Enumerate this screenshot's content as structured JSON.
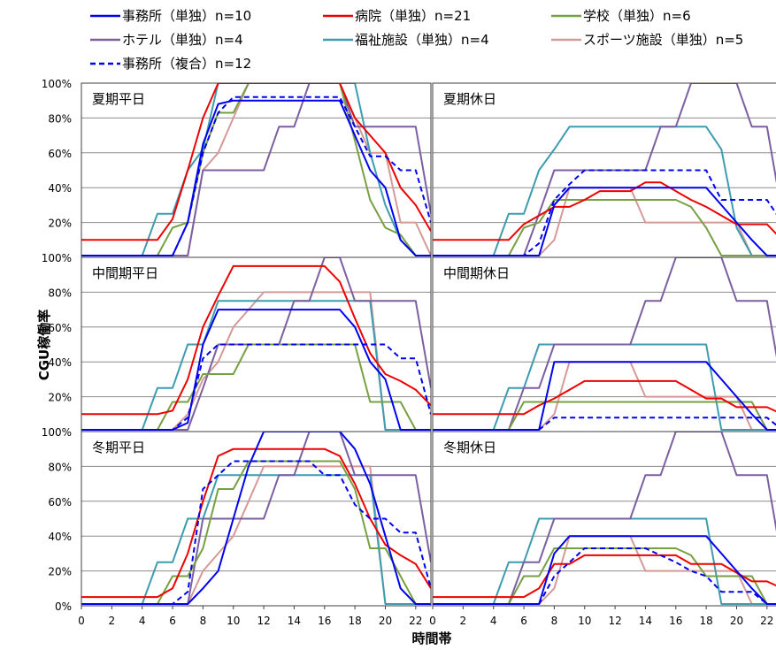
{
  "chart_data": {
    "type": "line",
    "ylabel": "CGU稼働率",
    "xlabel": "時間帯",
    "x_ticks": [
      "0",
      "2",
      "4",
      "6",
      "8",
      "10",
      "12",
      "14",
      "16",
      "18",
      "20",
      "22"
    ],
    "y_ticks": [
      "0%",
      "20%",
      "40%",
      "60%",
      "80%",
      "100%"
    ],
    "xlim": [
      0,
      23
    ],
    "ylim": [
      0,
      100
    ],
    "grid": true,
    "legend_position": "top",
    "series_styles": [
      {
        "name": "事務所（単独）n=10",
        "color": "#0000ee",
        "dash": "solid"
      },
      {
        "name": "病院（単独）n=21",
        "color": "#ee0000",
        "dash": "solid"
      },
      {
        "name": "学校（単独）n=6",
        "color": "#77a043",
        "dash": "solid"
      },
      {
        "name": "ホテル（単独）n=4",
        "color": "#7b5fa0",
        "dash": "solid"
      },
      {
        "name": "福祉施設（単独）n=4",
        "color": "#3d9cb0",
        "dash": "solid"
      },
      {
        "name": "スポーツ施設（単独）n=5",
        "color": "#d59a98",
        "dash": "solid"
      },
      {
        "name": "事務所（複合）n=12",
        "color": "#0000ee",
        "dash": "dashed"
      }
    ],
    "panels": [
      {
        "title": "夏期平日",
        "series": [
          [
            1,
            1,
            1,
            1,
            1,
            1,
            1,
            20,
            65,
            88,
            90,
            90,
            90,
            90,
            90,
            90,
            90,
            90,
            70,
            50,
            40,
            10,
            1,
            1
          ],
          [
            10,
            10,
            10,
            10,
            10,
            10,
            22,
            50,
            80,
            100,
            100,
            100,
            100,
            100,
            100,
            100,
            100,
            100,
            80,
            70,
            60,
            40,
            30,
            15
          ],
          [
            1,
            1,
            1,
            1,
            1,
            1,
            17,
            20,
            60,
            83,
            83,
            100,
            100,
            100,
            100,
            100,
            100,
            100,
            67,
            33,
            17,
            13,
            1,
            1
          ],
          [
            1,
            1,
            1,
            1,
            1,
            1,
            1,
            1,
            50,
            50,
            50,
            50,
            50,
            75,
            75,
            100,
            100,
            100,
            75,
            75,
            75,
            75,
            75,
            25
          ],
          [
            1,
            1,
            1,
            1,
            1,
            25,
            25,
            50,
            62,
            100,
            100,
            100,
            100,
            100,
            100,
            100,
            100,
            100,
            100,
            60,
            30,
            10,
            1,
            1
          ],
          [
            1,
            1,
            1,
            1,
            1,
            1,
            1,
            1,
            50,
            60,
            80,
            100,
            100,
            100,
            100,
            100,
            100,
            100,
            80,
            60,
            60,
            20,
            20,
            1
          ],
          [
            1,
            1,
            1,
            1,
            1,
            1,
            1,
            20,
            60,
            83,
            92,
            92,
            92,
            92,
            92,
            92,
            92,
            92,
            75,
            58,
            58,
            50,
            50,
            20
          ]
        ]
      },
      {
        "title": "夏期休日",
        "series": [
          [
            1,
            1,
            1,
            1,
            1,
            1,
            1,
            1,
            30,
            40,
            40,
            40,
            40,
            40,
            40,
            40,
            40,
            40,
            40,
            30,
            20,
            10,
            1,
            1
          ],
          [
            10,
            10,
            10,
            10,
            10,
            10,
            19,
            24,
            29,
            29,
            33,
            38,
            38,
            38,
            43,
            43,
            38,
            33,
            29,
            24,
            19,
            19,
            19,
            10
          ],
          [
            1,
            1,
            1,
            1,
            1,
            1,
            17,
            20,
            33,
            33,
            33,
            33,
            33,
            33,
            33,
            33,
            33,
            29,
            17,
            1,
            1,
            1,
            1,
            1
          ],
          [
            1,
            1,
            1,
            1,
            1,
            1,
            1,
            25,
            50,
            50,
            50,
            50,
            50,
            50,
            50,
            75,
            75,
            100,
            100,
            100,
            100,
            75,
            75,
            25
          ],
          [
            1,
            1,
            1,
            1,
            1,
            25,
            25,
            50,
            62,
            75,
            75,
            75,
            75,
            75,
            75,
            75,
            75,
            75,
            75,
            62,
            17,
            1,
            1,
            1
          ],
          [
            1,
            1,
            1,
            1,
            1,
            1,
            1,
            1,
            10,
            40,
            40,
            40,
            40,
            40,
            20,
            20,
            20,
            20,
            20,
            20,
            20,
            1,
            1,
            1
          ],
          [
            1,
            1,
            1,
            1,
            1,
            1,
            1,
            8,
            33,
            42,
            50,
            50,
            50,
            50,
            50,
            50,
            50,
            50,
            50,
            33,
            33,
            33,
            33,
            20
          ]
        ]
      },
      {
        "title": "中間期平日",
        "series": [
          [
            1,
            1,
            1,
            1,
            1,
            1,
            1,
            5,
            50,
            70,
            70,
            70,
            70,
            70,
            70,
            70,
            70,
            70,
            60,
            40,
            30,
            1,
            1,
            1
          ],
          [
            10,
            10,
            10,
            10,
            10,
            10,
            12,
            30,
            60,
            78,
            95,
            95,
            95,
            95,
            95,
            95,
            95,
            86,
            65,
            45,
            33,
            29,
            24,
            15
          ],
          [
            1,
            1,
            1,
            1,
            1,
            1,
            17,
            17,
            33,
            33,
            33,
            50,
            50,
            50,
            50,
            50,
            50,
            50,
            50,
            17,
            17,
            17,
            1,
            1
          ],
          [
            1,
            1,
            1,
            1,
            1,
            1,
            1,
            1,
            25,
            50,
            50,
            50,
            50,
            50,
            75,
            75,
            100,
            100,
            75,
            75,
            75,
            75,
            75,
            25
          ],
          [
            1,
            1,
            1,
            1,
            1,
            25,
            25,
            50,
            50,
            75,
            75,
            75,
            75,
            75,
            75,
            75,
            75,
            75,
            75,
            75,
            1,
            1,
            1,
            1
          ],
          [
            1,
            1,
            1,
            1,
            1,
            1,
            1,
            10,
            30,
            40,
            60,
            70,
            80,
            80,
            80,
            80,
            80,
            80,
            80,
            80,
            1,
            1,
            1,
            1
          ],
          [
            1,
            1,
            1,
            1,
            1,
            1,
            1,
            8,
            42,
            50,
            50,
            50,
            50,
            50,
            50,
            50,
            50,
            50,
            50,
            50,
            50,
            42,
            42,
            10
          ]
        ]
      },
      {
        "title": "中間期休日",
        "series": [
          [
            1,
            1,
            1,
            1,
            1,
            1,
            1,
            1,
            40,
            40,
            40,
            40,
            40,
            40,
            40,
            40,
            40,
            40,
            40,
            30,
            20,
            10,
            1,
            1
          ],
          [
            10,
            10,
            10,
            10,
            10,
            10,
            10,
            15,
            19,
            24,
            29,
            29,
            29,
            29,
            29,
            29,
            29,
            24,
            19,
            19,
            14,
            14,
            14,
            10
          ],
          [
            1,
            1,
            1,
            1,
            1,
            1,
            17,
            17,
            17,
            17,
            17,
            17,
            17,
            17,
            17,
            17,
            17,
            17,
            17,
            17,
            17,
            17,
            1,
            1
          ],
          [
            1,
            1,
            1,
            1,
            1,
            1,
            25,
            25,
            50,
            50,
            50,
            50,
            50,
            50,
            75,
            75,
            100,
            100,
            100,
            100,
            75,
            75,
            75,
            25
          ],
          [
            1,
            1,
            1,
            1,
            1,
            25,
            25,
            50,
            50,
            50,
            50,
            50,
            50,
            50,
            50,
            50,
            50,
            50,
            50,
            1,
            1,
            1,
            1,
            1
          ],
          [
            1,
            1,
            1,
            1,
            1,
            1,
            1,
            1,
            10,
            40,
            40,
            40,
            40,
            40,
            20,
            20,
            20,
            20,
            20,
            20,
            20,
            1,
            1,
            1
          ],
          [
            1,
            1,
            1,
            1,
            1,
            1,
            1,
            1,
            8,
            8,
            8,
            8,
            8,
            8,
            8,
            8,
            8,
            8,
            8,
            8,
            8,
            8,
            8,
            1
          ]
        ]
      },
      {
        "title": "冬期平日",
        "series": [
          [
            1,
            1,
            1,
            1,
            1,
            1,
            1,
            1,
            10,
            20,
            50,
            80,
            100,
            100,
            100,
            100,
            100,
            100,
            90,
            70,
            40,
            10,
            1,
            1
          ],
          [
            5,
            5,
            5,
            5,
            5,
            5,
            10,
            30,
            60,
            86,
            90,
            90,
            90,
            90,
            90,
            90,
            90,
            86,
            70,
            50,
            35,
            29,
            24,
            10
          ],
          [
            1,
            1,
            1,
            1,
            1,
            1,
            17,
            17,
            33,
            67,
            67,
            83,
            83,
            83,
            83,
            83,
            83,
            83,
            67,
            33,
            33,
            17,
            1,
            1
          ],
          [
            1,
            1,
            1,
            1,
            1,
            1,
            1,
            1,
            50,
            50,
            50,
            50,
            50,
            75,
            75,
            100,
            100,
            100,
            75,
            75,
            75,
            75,
            75,
            25
          ],
          [
            1,
            1,
            1,
            1,
            1,
            25,
            25,
            50,
            50,
            75,
            75,
            75,
            75,
            75,
            75,
            75,
            75,
            75,
            75,
            75,
            1,
            1,
            1,
            1
          ],
          [
            1,
            1,
            1,
            1,
            1,
            1,
            1,
            1,
            20,
            30,
            40,
            60,
            80,
            80,
            80,
            80,
            80,
            80,
            80,
            80,
            1,
            1,
            1,
            1
          ],
          [
            1,
            1,
            1,
            1,
            1,
            1,
            1,
            8,
            67,
            75,
            83,
            83,
            83,
            83,
            83,
            83,
            75,
            75,
            58,
            50,
            50,
            42,
            42,
            10
          ]
        ]
      },
      {
        "title": "冬期休日",
        "series": [
          [
            1,
            1,
            1,
            1,
            1,
            1,
            1,
            1,
            30,
            40,
            40,
            40,
            40,
            40,
            40,
            40,
            40,
            40,
            40,
            30,
            20,
            10,
            1,
            1
          ],
          [
            5,
            5,
            5,
            5,
            5,
            5,
            5,
            10,
            24,
            24,
            29,
            29,
            29,
            29,
            29,
            29,
            29,
            24,
            24,
            24,
            19,
            14,
            14,
            10
          ],
          [
            1,
            1,
            1,
            1,
            1,
            1,
            17,
            17,
            33,
            33,
            33,
            33,
            33,
            33,
            33,
            33,
            33,
            29,
            17,
            17,
            17,
            17,
            1,
            1
          ],
          [
            1,
            1,
            1,
            1,
            1,
            1,
            25,
            25,
            50,
            50,
            50,
            50,
            50,
            50,
            75,
            75,
            100,
            100,
            100,
            100,
            75,
            75,
            75,
            25
          ],
          [
            1,
            1,
            1,
            1,
            1,
            25,
            25,
            50,
            50,
            50,
            50,
            50,
            50,
            50,
            50,
            50,
            50,
            50,
            50,
            1,
            1,
            1,
            1,
            1
          ],
          [
            1,
            1,
            1,
            1,
            1,
            1,
            1,
            1,
            10,
            40,
            40,
            40,
            40,
            40,
            20,
            20,
            20,
            20,
            20,
            20,
            20,
            1,
            1,
            1
          ],
          [
            1,
            1,
            1,
            1,
            1,
            1,
            1,
            1,
            17,
            25,
            33,
            33,
            33,
            33,
            33,
            29,
            25,
            20,
            17,
            8,
            8,
            8,
            1,
            1
          ]
        ]
      }
    ]
  }
}
